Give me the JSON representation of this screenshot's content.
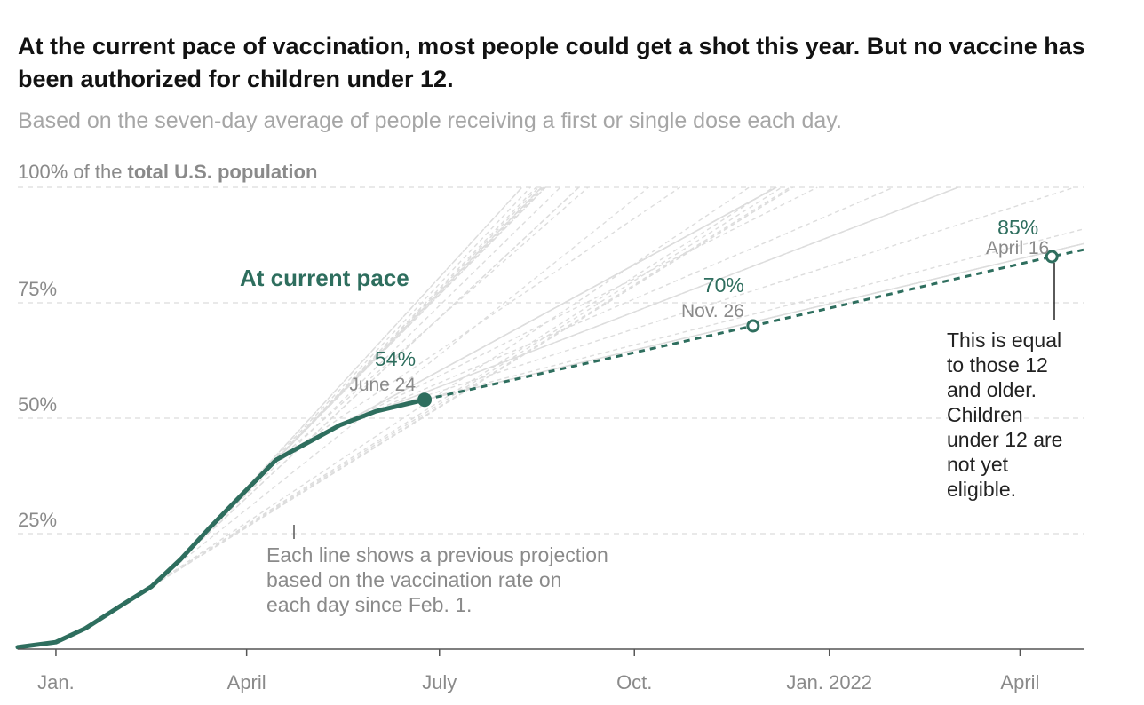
{
  "title": "At the current pace of vaccination, most people could get a shot this year. But no vaccine has been authorized for children under 12.",
  "subtitle": "Based on the seven-day average of people receiving a first or single dose each day.",
  "y_axis_label": {
    "prefix": "100% of the ",
    "bold": "total U.S. population"
  },
  "series_label": "At current pace",
  "background_note": [
    "Each line shows a previous projection",
    "based on the vaccination rate on",
    "each day since Feb. 1."
  ],
  "annotation_12": [
    "This is equal",
    "to those 12",
    "and older.",
    "Children",
    "under 12 are",
    "not yet",
    "eligible."
  ],
  "colors": {
    "accent": "#2e6e5e",
    "grid": "#dcdcdc",
    "projection_lines": "#dddddd",
    "muted_text": "#8a8a8a"
  },
  "chart_data": {
    "type": "line",
    "title": "At the current pace of vaccination, most people could get a shot this year. But no vaccine has been authorized for children under 12.",
    "subtitle": "Based on the seven-day average of people receiving a first or single dose each day.",
    "ylabel": "100% of the total U.S. population",
    "y_ticks": [
      "25%",
      "50%",
      "75%"
    ],
    "y_tick_values": [
      25,
      50,
      75
    ],
    "ylim": [
      0,
      100
    ],
    "x_ticks": [
      "Jan.",
      "April",
      "July",
      "Oct.",
      "Jan. 2022",
      "April"
    ],
    "x_tick_dates": [
      "2021-01-01",
      "2021-04-01",
      "2021-07-01",
      "2021-10-01",
      "2022-01-01",
      "2022-04-01"
    ],
    "xlim": [
      "2020-12-14",
      "2022-05-01"
    ],
    "grid": true,
    "series": [
      {
        "name": "At current pace",
        "style": "solid",
        "points": [
          [
            "2020-12-14",
            0.4
          ],
          [
            "2021-01-01",
            1.5
          ],
          [
            "2021-01-15",
            4.5
          ],
          [
            "2021-02-01",
            9.5
          ],
          [
            "2021-02-15",
            13.5
          ],
          [
            "2021-03-01",
            19.5
          ],
          [
            "2021-03-15",
            26.5
          ],
          [
            "2021-04-01",
            34.5
          ],
          [
            "2021-04-15",
            41
          ],
          [
            "2021-05-01",
            45
          ],
          [
            "2021-05-15",
            48.5
          ],
          [
            "2021-06-01",
            51.5
          ],
          [
            "2021-06-24",
            54
          ]
        ]
      },
      {
        "name": "At current pace",
        "style": "dashed",
        "points": [
          [
            "2021-06-24",
            54
          ],
          [
            "2021-11-26",
            70
          ],
          [
            "2022-04-16",
            85
          ],
          [
            "2022-05-01",
            86.5
          ]
        ]
      }
    ],
    "markers": [
      {
        "date": "2021-06-24",
        "value": 54,
        "label": "54%",
        "date_label": "June 24",
        "filled": true
      },
      {
        "date": "2021-11-26",
        "value": 70,
        "label": "70%",
        "date_label": "Nov. 26",
        "filled": false
      },
      {
        "date": "2022-04-16",
        "value": 85,
        "label": "85%",
        "date_label": "April 16",
        "filled": false
      }
    ],
    "background_projections": {
      "description": "Each line shows a previous projection based on the vaccination rate on each day since Feb. 1.",
      "start_date": "2021-02-01",
      "end_date": "2021-06-24"
    }
  }
}
